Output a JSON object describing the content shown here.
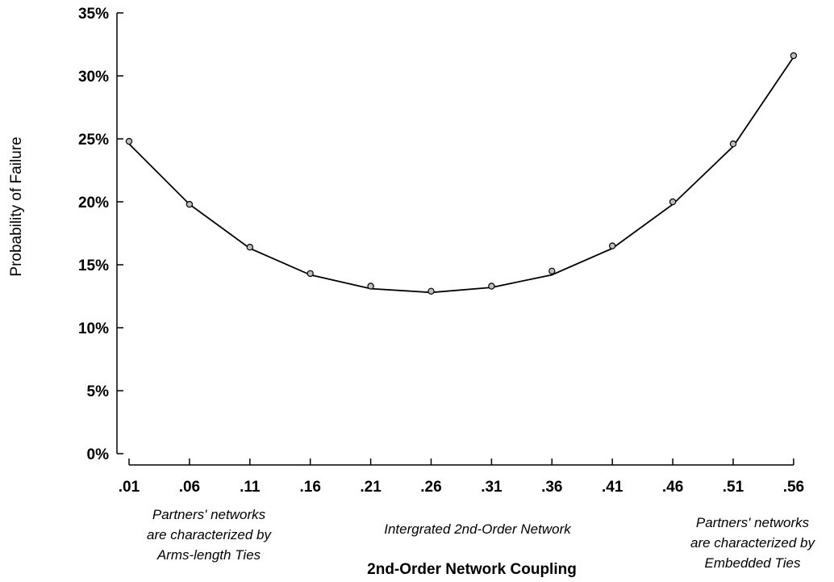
{
  "chart_data": {
    "type": "line",
    "title": "",
    "xlabel": "2nd-Order Network Coupling",
    "ylabel": "Probability of Failure",
    "categories": [
      ".01",
      ".06",
      ".11",
      ".16",
      ".21",
      ".26",
      ".31",
      ".36",
      ".41",
      ".46",
      ".51",
      ".56"
    ],
    "y_ticks": [
      "0%",
      "5%",
      "10%",
      "15%",
      "20%",
      "25%",
      "30%",
      "35%"
    ],
    "ylim": [
      0,
      35
    ],
    "grid": false,
    "series": [
      {
        "name": "",
        "fitted": [
          24.6,
          19.8,
          16.3,
          14.2,
          13.1,
          12.8,
          13.2,
          14.2,
          16.3,
          19.8,
          24.4,
          31.5
        ],
        "observed": [
          24.8,
          19.8,
          16.4,
          14.3,
          13.3,
          12.9,
          13.3,
          14.5,
          16.5,
          20.0,
          24.6,
          31.6
        ],
        "line_color": "#000000",
        "marker_fill": "#bfbfbf",
        "marker_stroke": "#000000"
      }
    ],
    "annotations": {
      "left": [
        "Partners' networks",
        "are characterized by",
        "Arms-length Ties"
      ],
      "center": [
        "Intergrated 2nd-Order Network"
      ],
      "right": [
        "Partners' networks",
        "are characterized by",
        "Embedded Ties"
      ]
    }
  }
}
